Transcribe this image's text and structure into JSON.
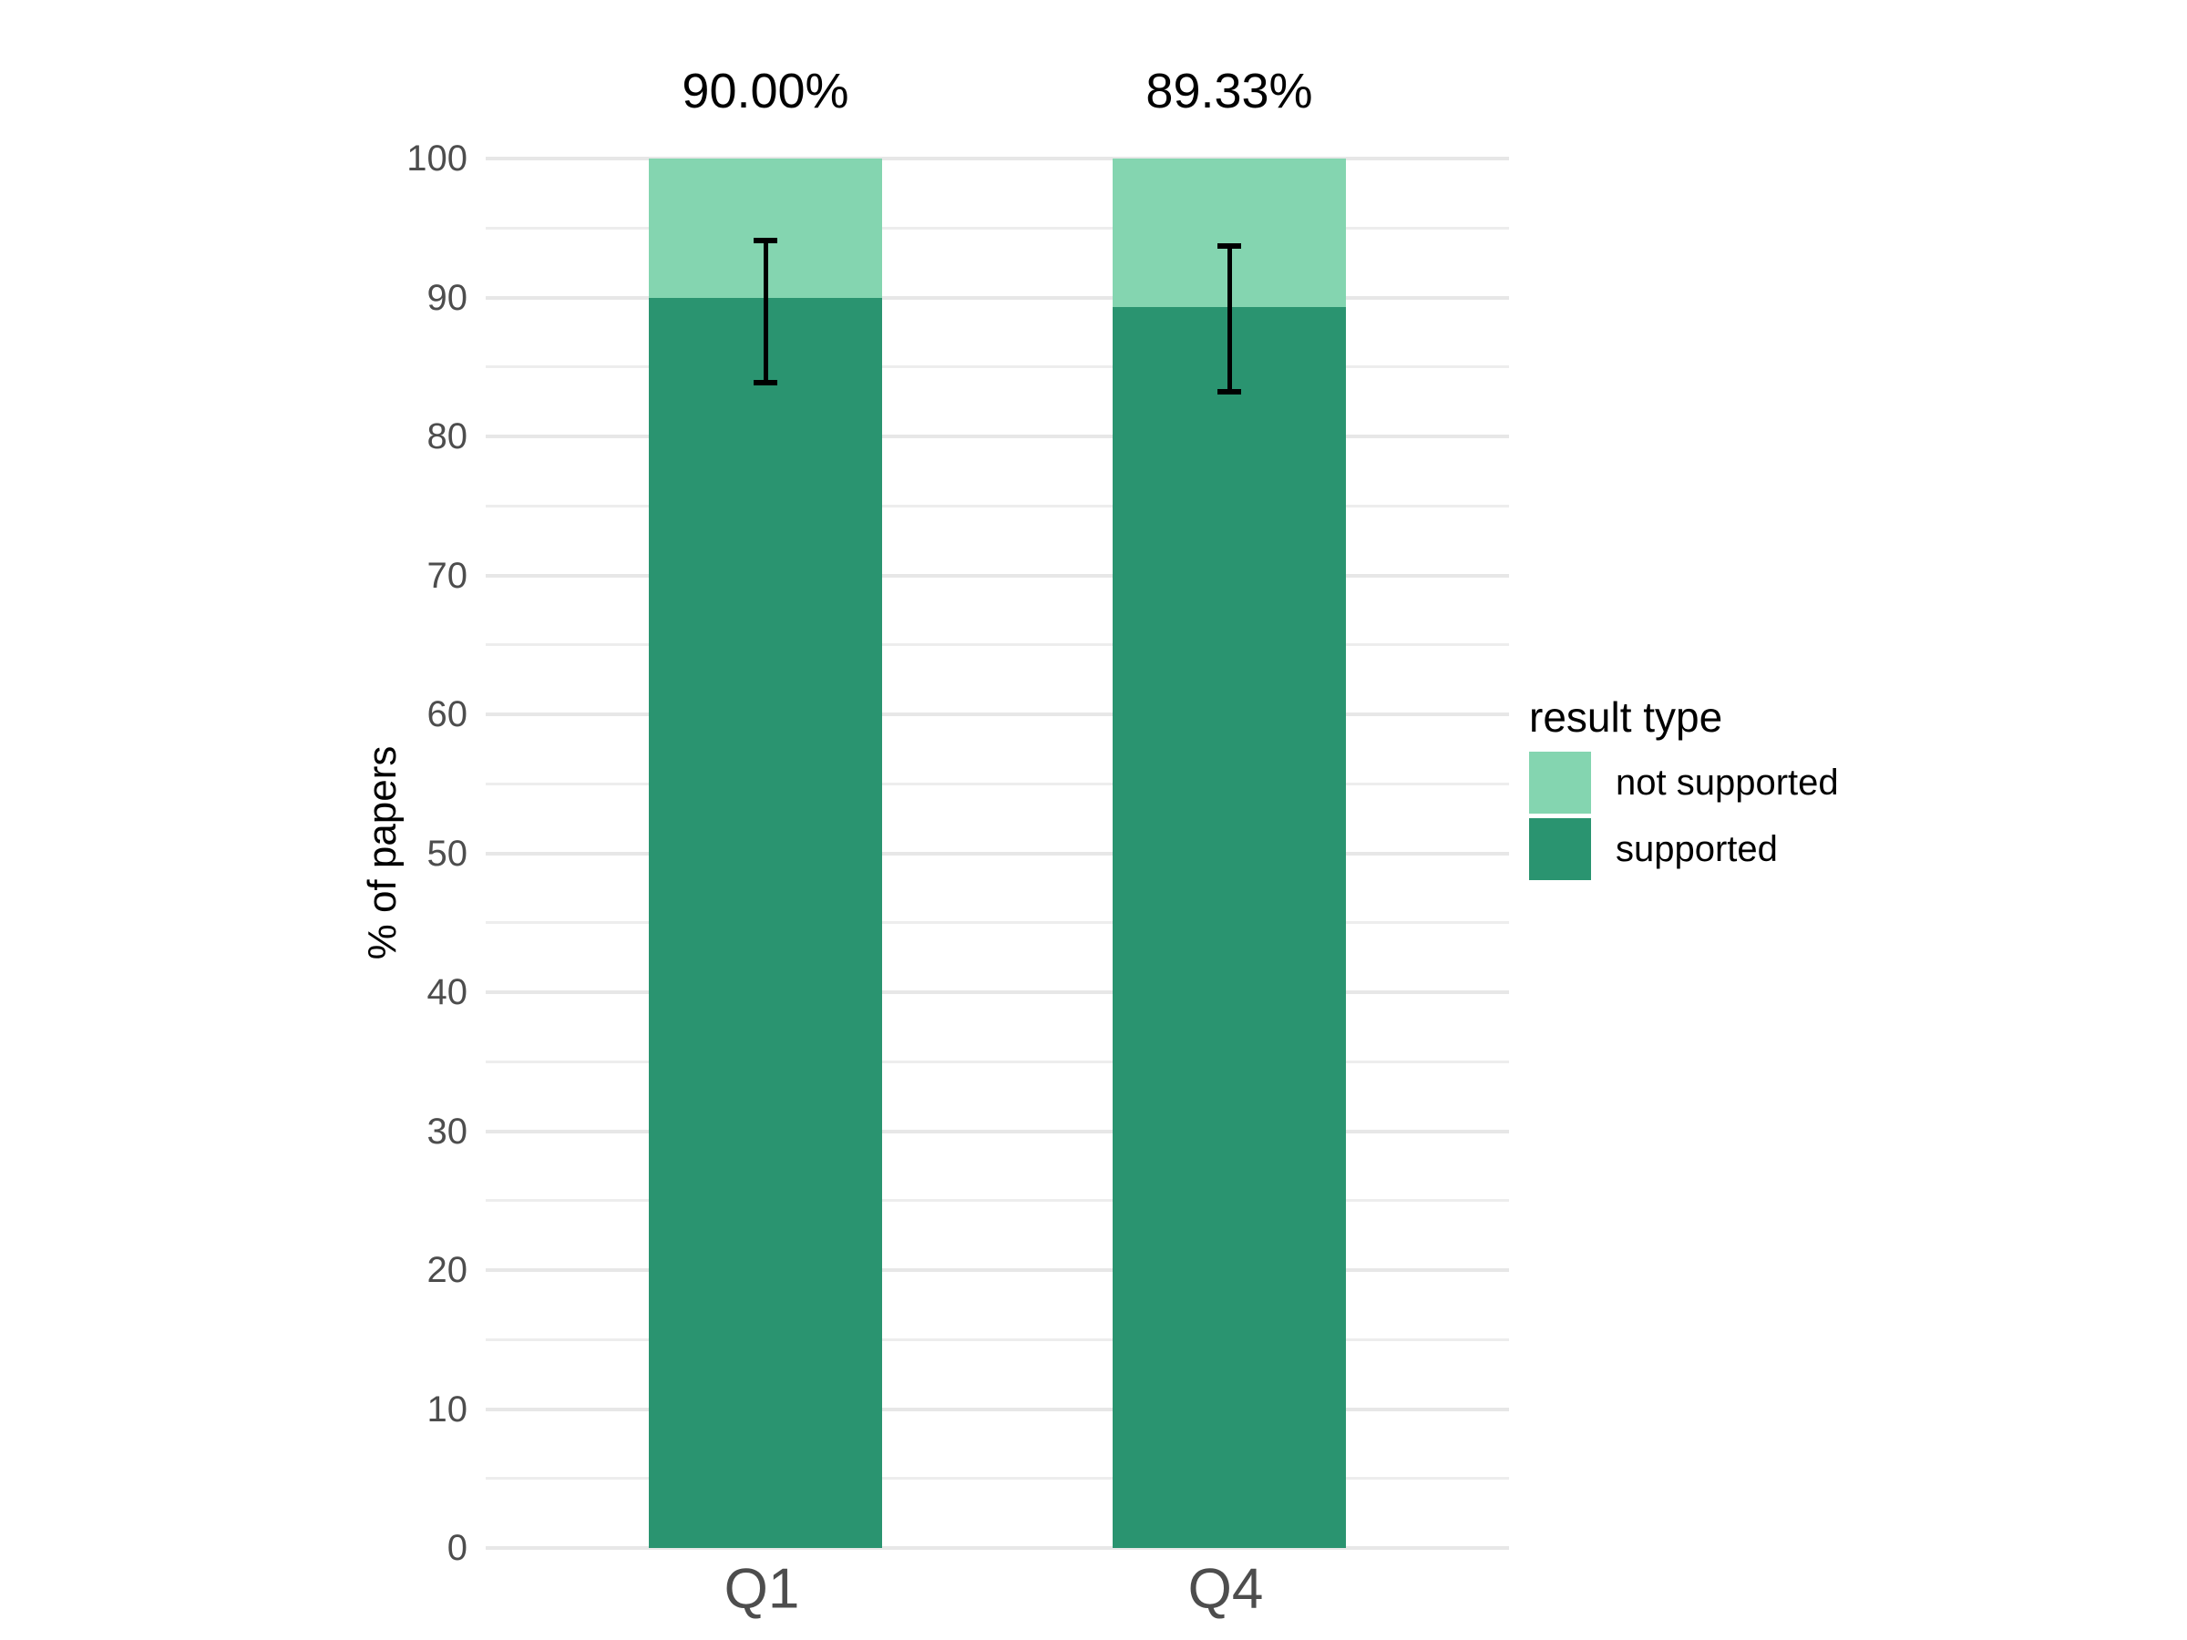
{
  "figure": {
    "background_color": "#FFFFFF"
  },
  "y_axis": {
    "title": "% of papers",
    "tick_labels": [
      "0",
      "10",
      "20",
      "30",
      "40",
      "50",
      "60",
      "70",
      "80",
      "90",
      "100"
    ],
    "tick_color": "#4D4D4D"
  },
  "x_axis": {
    "tick_labels": [
      "Q1",
      "Q4"
    ],
    "tick_color": "#4D4D4D"
  },
  "legend": {
    "title": "result type",
    "items": [
      {
        "label": "not supported",
        "color": "#84D5B0"
      },
      {
        "label": "supported",
        "color": "#2A9470"
      }
    ]
  },
  "colors": {
    "grid_major": "#E7E7E7",
    "grid_minor": "#EDEDED",
    "error_bar": "#000000",
    "bar_supported": "#2A9470",
    "bar_not_supported": "#84D5B0"
  },
  "chart_data": {
    "type": "bar",
    "stacked": true,
    "orientation": "vertical",
    "categories": [
      "Q1",
      "Q4"
    ],
    "series": [
      {
        "name": "supported",
        "color": "#2A9470",
        "values": [
          90.0,
          89.33
        ]
      },
      {
        "name": "not supported",
        "color": "#84D5B0",
        "values": [
          10.0,
          10.67
        ]
      }
    ],
    "bar_value_labels": [
      "90.00%",
      "89.33%"
    ],
    "error_bars": [
      {
        "category": "Q1",
        "center": 90.0,
        "ymin": 83.9,
        "ymax": 94.1
      },
      {
        "category": "Q4",
        "center": 89.33,
        "ymin": 83.2,
        "ymax": 93.7
      }
    ],
    "title": "",
    "xlabel": "",
    "ylabel": "% of papers",
    "ylim": [
      0,
      100
    ],
    "yticks": [
      0,
      10,
      20,
      30,
      40,
      50,
      60,
      70,
      80,
      90,
      100
    ],
    "grid": "horizontal-major-and-minor",
    "legend_position": "right",
    "legend_title": "result type"
  }
}
